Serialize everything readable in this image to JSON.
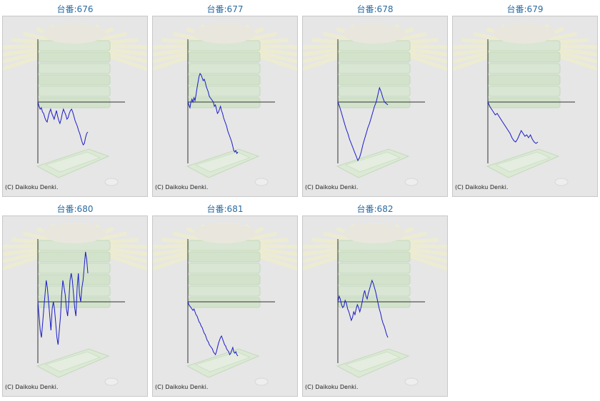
{
  "theme": {
    "line_color": "#1a1ac8",
    "axis_color": "#333333",
    "title_color": "#2a6aa0"
  },
  "copyright": "(C) Daikoku Denki.",
  "chart_data": [
    {
      "type": "line",
      "title": "台番:676",
      "y": [
        0,
        -6,
        -10,
        -8,
        -14,
        -16,
        -22,
        -26,
        -28,
        -20,
        -14,
        -10,
        -16,
        -20,
        -24,
        -18,
        -12,
        -20,
        -26,
        -30,
        -24,
        -16,
        -10,
        -14,
        -18,
        -24,
        -22,
        -16,
        -12,
        -10,
        -14,
        -20,
        -26,
        -30,
        -34,
        -40,
        -44,
        -50,
        -56,
        -60,
        -58,
        -50,
        -44,
        -42
      ]
    },
    {
      "type": "line",
      "title": "台番:677",
      "y": [
        0,
        -4,
        -8,
        0,
        4,
        0,
        6,
        2,
        10,
        20,
        28,
        36,
        40,
        38,
        34,
        30,
        32,
        28,
        22,
        18,
        14,
        8,
        6,
        4,
        2,
        0,
        -6,
        -4,
        -10,
        -16,
        -14,
        -10,
        -6,
        -12,
        -16,
        -22,
        -26,
        -30,
        -34,
        -40,
        -44,
        -48,
        -52,
        -56,
        -62,
        -68,
        -70,
        -68,
        -72,
        -70
      ]
    },
    {
      "type": "line",
      "title": "台番:678",
      "y": [
        0,
        -6,
        -14,
        -22,
        -30,
        -38,
        -44,
        -52,
        -58,
        -64,
        -70,
        -76,
        -82,
        -78,
        -70,
        -60,
        -52,
        -44,
        -36,
        -30,
        -22,
        -14,
        -6,
        0,
        10,
        20,
        14,
        6,
        0,
        -2,
        -4
      ]
    },
    {
      "type": "line",
      "title": "台番:679",
      "y": [
        0,
        -6,
        -10,
        -14,
        -18,
        -16,
        -20,
        -24,
        -28,
        -32,
        -36,
        -40,
        -44,
        -50,
        -54,
        -56,
        -52,
        -46,
        -40,
        -44,
        -48,
        -46,
        -50,
        -46,
        -52,
        -56,
        -58,
        -56
      ]
    },
    {
      "type": "line",
      "title": "台番:680",
      "y": [
        0,
        -20,
        -40,
        -50,
        -30,
        -10,
        10,
        30,
        20,
        0,
        -20,
        -40,
        -10,
        0,
        -10,
        -30,
        -50,
        -60,
        -40,
        -20,
        10,
        30,
        20,
        10,
        -10,
        -20,
        0,
        30,
        40,
        30,
        10,
        -10,
        -20,
        20,
        40,
        10,
        0,
        20,
        30,
        50,
        70,
        60,
        40
      ]
    },
    {
      "type": "line",
      "title": "台番:681",
      "y": [
        0,
        -4,
        -6,
        -8,
        -10,
        -12,
        -10,
        -14,
        -18,
        -20,
        -24,
        -28,
        -30,
        -34,
        -36,
        -40,
        -44,
        -46,
        -50,
        -54,
        -56,
        -60,
        -62,
        -64,
        -66,
        -70,
        -72,
        -74,
        -70,
        -64,
        -58,
        -54,
        -50,
        -48,
        -52,
        -56,
        -60,
        -62,
        -66,
        -68,
        -70,
        -74,
        -72,
        -68,
        -64,
        -70,
        -72,
        -70,
        -74,
        -76
      ]
    },
    {
      "type": "line",
      "title": "台番:682",
      "y": [
        0,
        8,
        4,
        -4,
        -8,
        -6,
        2,
        -2,
        -10,
        -14,
        -20,
        -26,
        -22,
        -14,
        -18,
        -10,
        -4,
        -8,
        -14,
        -8,
        0,
        10,
        16,
        8,
        4,
        12,
        18,
        24,
        30,
        26,
        20,
        14,
        6,
        -2,
        -10,
        -16,
        -24,
        -30,
        -34,
        -40,
        -46,
        -50
      ]
    }
  ]
}
